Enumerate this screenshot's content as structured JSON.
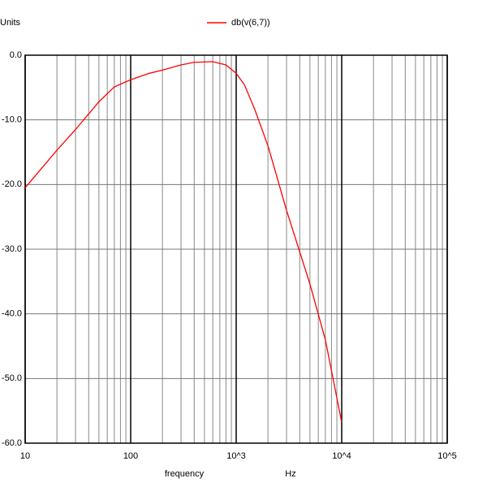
{
  "chart_data": {
    "type": "line",
    "y_label": "Units",
    "x_label": "frequency",
    "x_unit": "Hz",
    "x": [
      10,
      20,
      30,
      50,
      70,
      100,
      150,
      200,
      300,
      400,
      600,
      800,
      1000,
      1200,
      1500,
      2000,
      3000,
      5000,
      7000,
      10000
    ],
    "series": [
      {
        "name": "db(v(6,7))",
        "color": "#ff0000",
        "values": [
          -20.5,
          -14.7,
          -11.5,
          -7.2,
          -4.9,
          -3.8,
          -2.8,
          -2.3,
          -1.5,
          -1.1,
          -1.0,
          -1.5,
          -2.8,
          -4.6,
          -8.4,
          -14.0,
          -24.0,
          -35.4,
          -44.0,
          -56.8
        ]
      }
    ],
    "xlim": [
      10,
      100000
    ],
    "xscale": "log",
    "xticks": [
      10,
      100,
      {
        "value": 1000,
        "label": "10^3"
      },
      {
        "value": 10000,
        "label": "10^4"
      },
      {
        "value": 100000,
        "label": "10^5"
      }
    ],
    "ylim": [
      -60,
      0
    ],
    "yticks": [
      {
        "value": 0,
        "label": "0.0"
      },
      {
        "value": -10,
        "label": "-10.0"
      },
      {
        "value": -20,
        "label": "-20.0"
      },
      {
        "value": -30,
        "label": "-30.0"
      },
      {
        "value": -40,
        "label": "-40.0"
      },
      {
        "value": -50,
        "label": "-50.0"
      },
      {
        "value": -60,
        "label": "-60.0"
      }
    ],
    "grid": true,
    "minor_grid": true,
    "legend": "top"
  }
}
